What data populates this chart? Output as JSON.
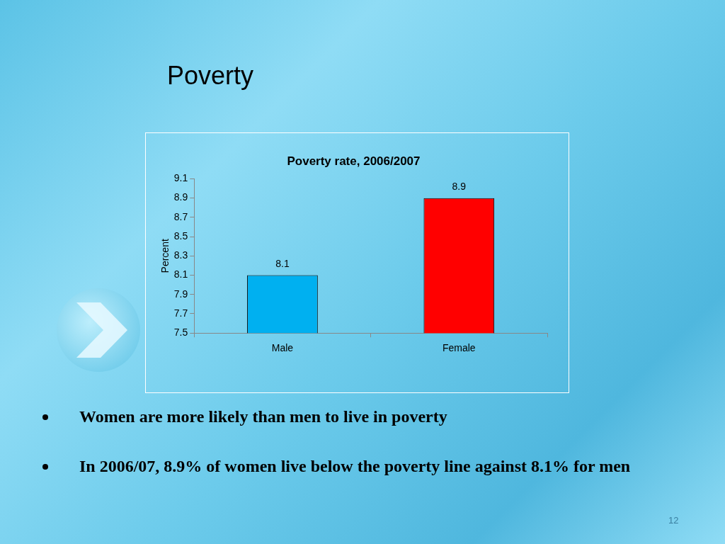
{
  "chart_data": {
    "type": "bar",
    "title": "Poverty rate, 2006/2007",
    "ylabel": "Percent",
    "categories": [
      "Male",
      "Female"
    ],
    "values": [
      8.1,
      8.9
    ],
    "colors": [
      "#00b0f0",
      "#ff0000"
    ],
    "ylim": [
      7.5,
      9.1
    ],
    "yticks": [
      7.5,
      7.7,
      7.9,
      8.1,
      8.3,
      8.5,
      8.7,
      8.9,
      9.1
    ],
    "grid": false,
    "legend": false,
    "data_labels": true,
    "annotations": [
      "Poverty",
      "Women are more likely than men to live in poverty",
      "In 2006/07, 8.9% of women live below the poverty line against 8.1% for men",
      "12"
    ]
  }
}
